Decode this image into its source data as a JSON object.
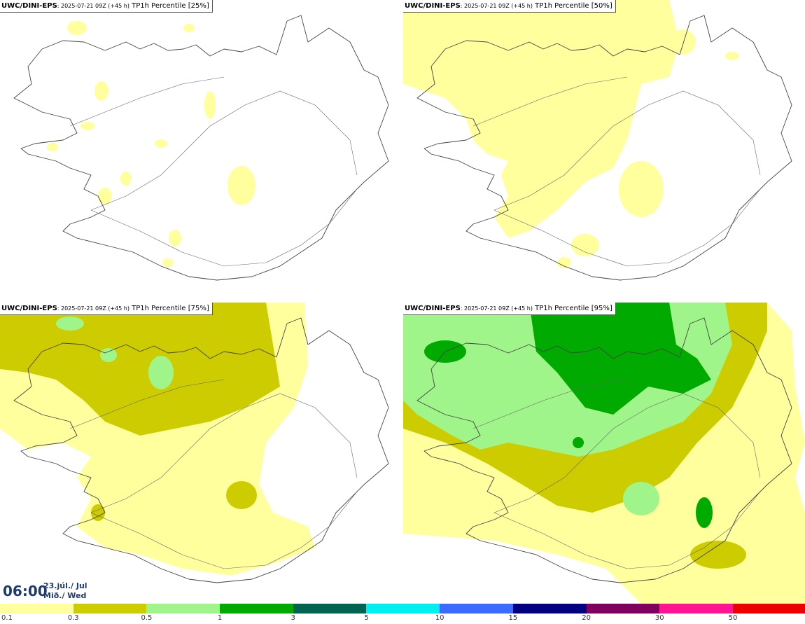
{
  "panels": [
    {
      "model": "UWC/DINI-EPS",
      "run": ": 2025-07-21 09Z (+45 h)",
      "param": " TP1h Percentile [25%]"
    },
    {
      "model": "UWC/DINI-EPS",
      "run": ": 2025-07-21 09Z (+45 h)",
      "param": " TP1h Percentile [50%]"
    },
    {
      "model": "UWC/DINI-EPS",
      "run": ": 2025-07-21 09Z (+45 h)",
      "param": " TP1h Percentile [75%]"
    },
    {
      "model": "UWC/DINI-EPS",
      "run": ": 2025-07-21 09Z (+45 h)",
      "param": " TP1h Percentile [95%]"
    }
  ],
  "valid_time": {
    "hour": "06:00",
    "date_line1": "23.júl./ Jul",
    "date_line2": "Mið./ Wed"
  },
  "legend": {
    "colors": [
      "#ffff9e",
      "#cccc00",
      "#a0f58a",
      "#00aa00",
      "#006450",
      "#00f0f0",
      "#3c6cff",
      "#000080",
      "#800060",
      "#ff1493",
      "#ee0000"
    ],
    "labels": [
      "0.1",
      "0.3",
      "0.5",
      "1",
      "3",
      "5",
      "10",
      "15",
      "20",
      "30",
      "50"
    ]
  },
  "precip_levels": {
    "light_yellow": "#ffff9e",
    "olive": "#cccc00",
    "light_green": "#a0f58a",
    "green": "#00aa00"
  }
}
